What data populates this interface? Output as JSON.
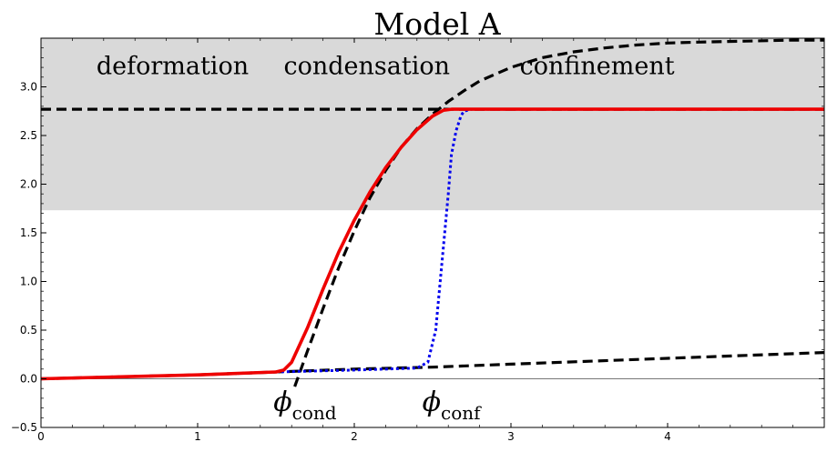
{
  "chart_data": {
    "type": "line",
    "title": "Model A",
    "xlim": [
      0,
      5
    ],
    "ylim": [
      -0.5,
      3.5
    ],
    "x_ticks": [
      0,
      1,
      2,
      3,
      4,
      5
    ],
    "y_ticks": [
      -0.5,
      0.0,
      0.5,
      1.0,
      1.5,
      2.0,
      2.5,
      3.0
    ],
    "x_tick_labels": [
      "0",
      "1",
      "2",
      "3",
      "4"
    ],
    "y_tick_labels": [
      "−0.5",
      "0.0",
      "0.5",
      "1.0",
      "1.5",
      "2.0",
      "2.5",
      "3.0"
    ],
    "shaded_band": {
      "y_from": 1.732,
      "y_to": 3.5,
      "color": "#d9d9d9"
    },
    "region_labels": [
      {
        "text": "deformation",
        "x": 0.84,
        "y": 3.13
      },
      {
        "text": "condensation",
        "x": 2.08,
        "y": 3.13
      },
      {
        "text": "confinement",
        "x": 3.55,
        "y": 3.13
      }
    ],
    "phi_labels": [
      {
        "symbol": "ϕ",
        "subscript": "cond",
        "x": 1.6,
        "y": -0.33
      },
      {
        "symbol": "ϕ",
        "subscript": "conf",
        "x": 2.55,
        "y": -0.33
      }
    ],
    "grid": false,
    "legend": "none",
    "series": [
      {
        "style": "dashed",
        "color": "#000000",
        "x": [
          0,
          5
        ],
        "y": [
          2.77,
          2.77
        ]
      },
      {
        "style": "dashed",
        "color": "#000000",
        "x": [
          1.62,
          1.7,
          1.8,
          1.9,
          2.0,
          2.1,
          2.2,
          2.3,
          2.4,
          2.5,
          2.6,
          2.7,
          2.8,
          3.0,
          3.2,
          3.4,
          3.6,
          3.8,
          4.0,
          4.2,
          4.5,
          4.8,
          5.0
        ],
        "y": [
          -0.08,
          0.28,
          0.72,
          1.14,
          1.52,
          1.86,
          2.14,
          2.38,
          2.57,
          2.72,
          2.85,
          2.96,
          3.06,
          3.2,
          3.3,
          3.36,
          3.4,
          3.43,
          3.45,
          3.46,
          3.47,
          3.48,
          3.48
        ]
      },
      {
        "style": "dashed",
        "color": "#000000",
        "x": [
          0,
          1.0,
          2.0,
          2.5,
          3.0,
          3.5,
          4.0,
          4.5,
          5.0
        ],
        "y": [
          0.0,
          0.04,
          0.1,
          0.12,
          0.15,
          0.18,
          0.21,
          0.24,
          0.27
        ]
      },
      {
        "style": "dotted",
        "color": "#0000ee",
        "x": [
          0,
          1.0,
          1.5,
          2.0,
          2.4,
          2.47,
          2.52,
          2.56,
          2.6,
          2.62,
          2.65,
          2.68,
          2.7,
          2.75,
          3.0,
          5.0
        ],
        "y": [
          0.0,
          0.04,
          0.07,
          0.09,
          0.11,
          0.17,
          0.5,
          1.2,
          1.9,
          2.3,
          2.55,
          2.7,
          2.75,
          2.77,
          2.77,
          2.77
        ]
      },
      {
        "style": "solid",
        "color": "#ee0000",
        "x": [
          0,
          1.0,
          1.5,
          1.55,
          1.6,
          1.7,
          1.8,
          1.9,
          2.0,
          2.1,
          2.2,
          2.3,
          2.4,
          2.5,
          2.57,
          2.62,
          2.7,
          3.0,
          5.0
        ],
        "y": [
          0.0,
          0.04,
          0.07,
          0.09,
          0.17,
          0.52,
          0.92,
          1.3,
          1.63,
          1.92,
          2.17,
          2.38,
          2.56,
          2.7,
          2.76,
          2.77,
          2.77,
          2.77,
          2.77
        ]
      }
    ]
  }
}
